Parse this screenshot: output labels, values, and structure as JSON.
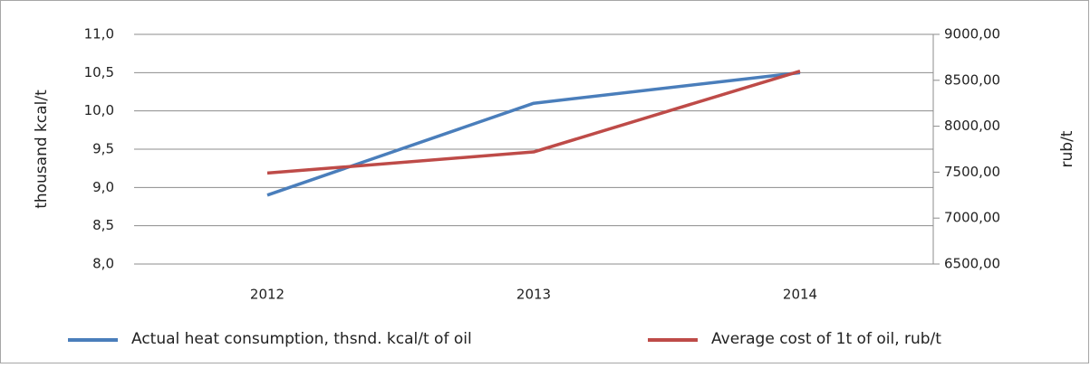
{
  "chart_data": {
    "type": "line",
    "categories": [
      "2012",
      "2013",
      "2014"
    ],
    "series": [
      {
        "name": "Actual heat consumption, thsnd. kcal/t of oil",
        "color": "#4a7ebb",
        "values": [
          8.9,
          10.1,
          10.5
        ]
      },
      {
        "name": "Average cost of 1t of oil, rub/t",
        "color": "#be4b48",
        "values": [
          7490,
          7720,
          8600
        ],
        "axis": "y2"
      }
    ],
    "ylabel": "thousand kcal/t",
    "y2label": "rub/t",
    "ylim": [
      8.0,
      11.0
    ],
    "yticks": [
      {
        "value": 8.0,
        "label": "8,0"
      },
      {
        "value": 8.5,
        "label": "8,5"
      },
      {
        "value": 9.0,
        "label": "9,0"
      },
      {
        "value": 9.5,
        "label": "9,5"
      },
      {
        "value": 10.0,
        "label": "10,0"
      },
      {
        "value": 10.5,
        "label": "10,5"
      },
      {
        "value": 11.0,
        "label": "11,0"
      }
    ],
    "y2lim": [
      6500,
      9000
    ],
    "y2ticks": [
      {
        "value": 6500,
        "label": "6500,00"
      },
      {
        "value": 7000,
        "label": "7000,00"
      },
      {
        "value": 7500,
        "label": "7500,00"
      },
      {
        "value": 8000,
        "label": "8000,00"
      },
      {
        "value": 8500,
        "label": "8500,00"
      },
      {
        "value": 9000,
        "label": "9000,00"
      }
    ],
    "grid": true,
    "legend": "bottom"
  }
}
